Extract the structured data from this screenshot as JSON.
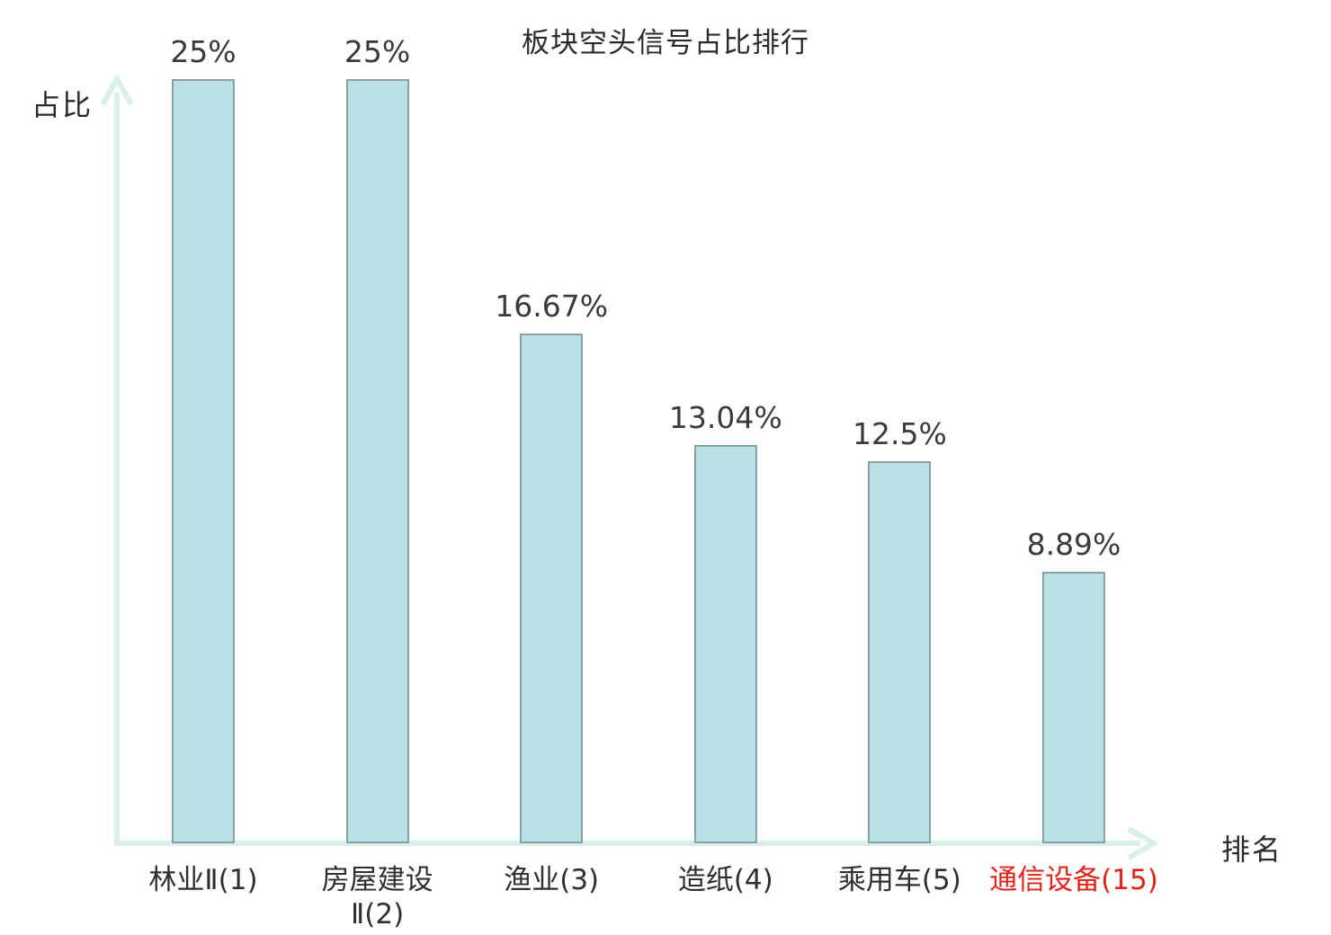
{
  "chart_data": {
    "type": "bar",
    "title": "板块空头信号占比排行",
    "xlabel": "排名",
    "ylabel": "占比",
    "ylim": [
      0,
      25
    ],
    "grid": false,
    "legend": "none",
    "bars": [
      {
        "category": "林业Ⅱ(1)",
        "category_lines": [
          "林业Ⅱ(1)"
        ],
        "value": 25,
        "value_label": "25%",
        "label_color": "#2f2f2f"
      },
      {
        "category": "房屋建设Ⅱ(2)",
        "category_lines": [
          "房屋建设",
          "Ⅱ(2)"
        ],
        "value": 25,
        "value_label": "25%",
        "label_color": "#2f2f2f"
      },
      {
        "category": "渔业(3)",
        "category_lines": [
          "渔业(3)"
        ],
        "value": 16.67,
        "value_label": "16.67%",
        "label_color": "#2f2f2f"
      },
      {
        "category": "造纸(4)",
        "category_lines": [
          "造纸(4)"
        ],
        "value": 13.04,
        "value_label": "13.04%",
        "label_color": "#2f2f2f"
      },
      {
        "category": "乘用车(5)",
        "category_lines": [
          "乘用车(5)"
        ],
        "value": 12.5,
        "value_label": "12.5%",
        "label_color": "#2f2f2f"
      },
      {
        "category": "通信设备(15)",
        "category_lines": [
          "通信设备(15)"
        ],
        "value": 8.89,
        "value_label": "8.89%",
        "label_color": "#e0241b"
      }
    ],
    "colors": {
      "bar_fill": "#b9e0e4",
      "bar_border": "#87a2a4",
      "axis": "#daeeea",
      "text": "#2f2f2f",
      "highlight": "#e0241b"
    }
  }
}
